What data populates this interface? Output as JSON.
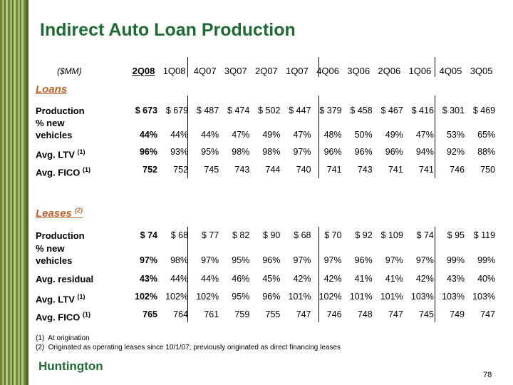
{
  "header": {
    "title": "Indirect Auto Loan Production",
    "unit": "($MM)",
    "columns": [
      "2Q08",
      "1Q08",
      "4Q07",
      "3Q07",
      "2Q07",
      "1Q07",
      "4Q06",
      "3Q06",
      "2Q06",
      "1Q06",
      "4Q05",
      "3Q05"
    ]
  },
  "sections": [
    {
      "title": "Loans",
      "rows": [
        {
          "label": "Production",
          "values": [
            "$ 673",
            "$ 679",
            "$ 487",
            "$ 474",
            "$ 502",
            "$ 447",
            "$ 379",
            "$ 458",
            "$ 467",
            "$ 416",
            "$ 301",
            "$ 469"
          ]
        },
        {
          "label": "% new\nvehicles",
          "values": [
            "44%",
            "44%",
            "44%",
            "47%",
            "49%",
            "47%",
            "48%",
            "50%",
            "49%",
            "47%",
            "53%",
            "65%"
          ]
        },
        {
          "label": "Avg. LTV",
          "note": "(1)",
          "values": [
            "96%",
            "93%",
            "95%",
            "98%",
            "98%",
            "97%",
            "96%",
            "96%",
            "96%",
            "94%",
            "92%",
            "88%"
          ]
        },
        {
          "label": "Avg. FICO",
          "note": "(1)",
          "values": [
            "752",
            "752",
            "745",
            "743",
            "744",
            "740",
            "741",
            "743",
            "741",
            "741",
            "746",
            "750"
          ]
        }
      ]
    },
    {
      "title": "Leases",
      "note": "(2)",
      "rows": [
        {
          "label": "Production",
          "values": [
            "$ 74",
            "$ 68",
            "$ 77",
            "$ 82",
            "$ 90",
            "$ 68",
            "$ 70",
            "$ 92",
            "$ 109",
            "$ 74",
            "$ 95",
            "$ 119"
          ]
        },
        {
          "label": "% new\nvehicles",
          "values": [
            "97%",
            "98%",
            "97%",
            "95%",
            "96%",
            "97%",
            "97%",
            "96%",
            "97%",
            "97%",
            "99%",
            "99%"
          ]
        },
        {
          "label": "Avg. residual",
          "values": [
            "43%",
            "44%",
            "44%",
            "46%",
            "45%",
            "42%",
            "42%",
            "41%",
            "41%",
            "42%",
            "43%",
            "40%"
          ]
        },
        {
          "label": "Avg. LTV",
          "note": "(1)",
          "values": [
            "102%",
            "102%",
            "102%",
            "95%",
            "96%",
            "101%",
            "102%",
            "101%",
            "101%",
            "103%",
            "103%",
            "103%"
          ]
        },
        {
          "label": "Avg. FICO",
          "note": "(1)",
          "values": [
            "765",
            "764",
            "761",
            "759",
            "755",
            "747",
            "746",
            "748",
            "747",
            "745",
            "749",
            "747"
          ]
        }
      ]
    }
  ],
  "footnotes": [
    "(1)  At origination",
    "(2)  Originated as operating leases since 10/1/07; previously originated as direct financing leases"
  ],
  "logo": "Huntington",
  "page_number": "78"
}
